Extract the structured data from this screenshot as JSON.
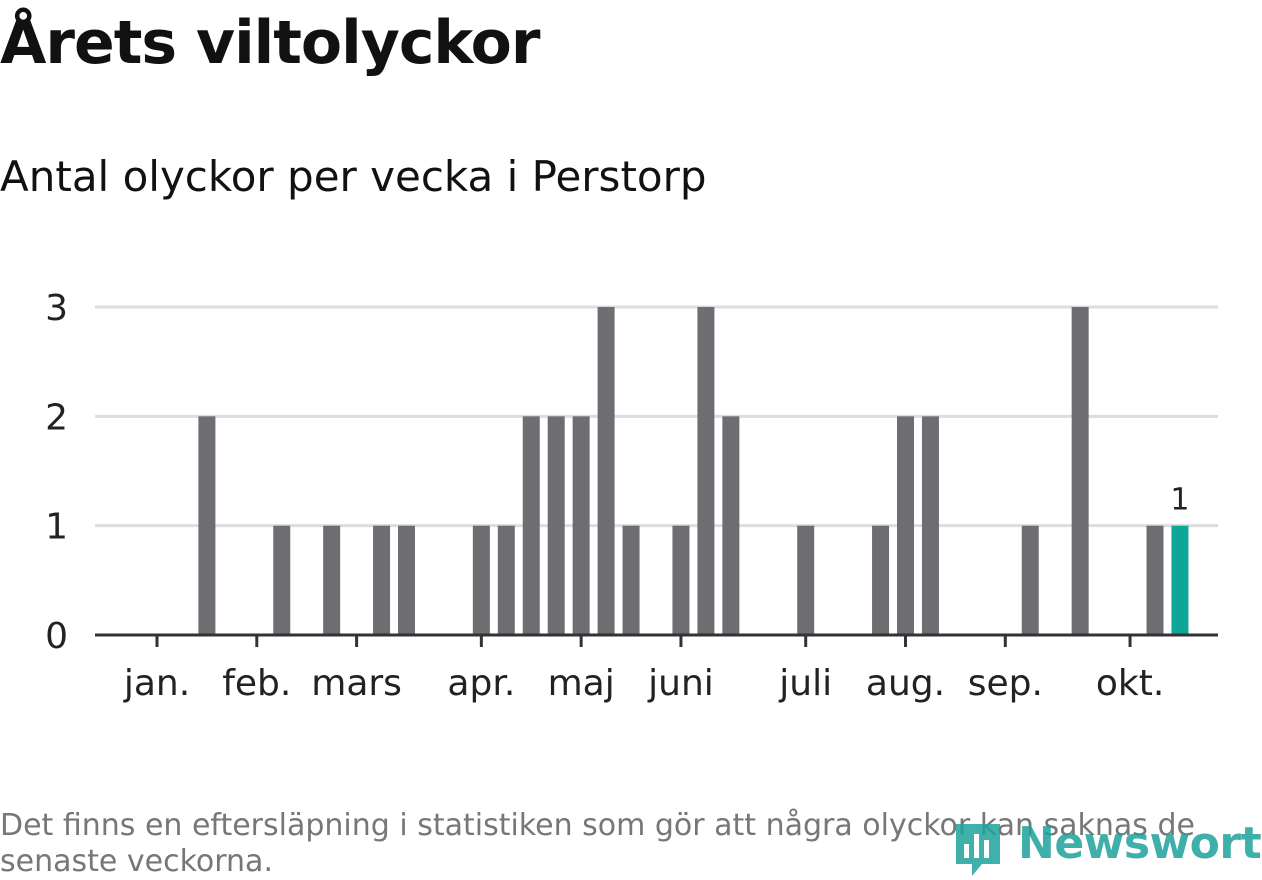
{
  "title": "Årets viltolyckor",
  "subtitle": "Antal olyckor per vecka i Perstorp",
  "footnote": "Det finns en eftersläpning i statistiken som gör att några olyckor kan saknas de senaste veckorna.",
  "logo": {
    "text": "Newsworthy",
    "icon": "chart-logo-icon"
  },
  "colors": {
    "bar": "#6e6d72",
    "highlight": "#0fa69a",
    "grid": "#dddddd",
    "axis": "#333333"
  },
  "chart_data": {
    "type": "bar",
    "title": "Årets viltolyckor",
    "subtitle": "Antal olyckor per vecka i Perstorp",
    "xlabel": "",
    "ylabel": "",
    "ylim": [
      0,
      3
    ],
    "yticks": [
      "0",
      "1",
      "2",
      "3"
    ],
    "grid": true,
    "weeks": [
      1,
      2,
      3,
      4,
      5,
      6,
      7,
      8,
      9,
      10,
      11,
      12,
      13,
      14,
      15,
      16,
      17,
      18,
      19,
      20,
      21,
      22,
      23,
      24,
      25,
      26,
      27,
      28,
      29,
      30,
      31,
      32,
      33,
      34,
      35,
      36,
      37,
      38,
      39,
      40,
      41,
      42,
      43
    ],
    "values": [
      0,
      0,
      2,
      0,
      0,
      1,
      0,
      1,
      0,
      1,
      1,
      0,
      0,
      1,
      1,
      2,
      2,
      2,
      3,
      1,
      0,
      1,
      3,
      2,
      0,
      0,
      1,
      0,
      0,
      1,
      2,
      2,
      0,
      0,
      0,
      1,
      0,
      3,
      0,
      0,
      1,
      1,
      0
    ],
    "highlight_week": 42,
    "highlight_label": "1",
    "month_labels": [
      {
        "label": "jan.",
        "week": 1.5
      },
      {
        "label": "feb.",
        "week": 5.5
      },
      {
        "label": "mars",
        "week": 9.5
      },
      {
        "label": "apr.",
        "week": 14.5
      },
      {
        "label": "maj",
        "week": 18.5
      },
      {
        "label": "juni",
        "week": 22.5
      },
      {
        "label": "juli",
        "week": 27.5
      },
      {
        "label": "aug.",
        "week": 31.5
      },
      {
        "label": "sep.",
        "week": 35.5
      },
      {
        "label": "okt.",
        "week": 40.5
      }
    ]
  }
}
